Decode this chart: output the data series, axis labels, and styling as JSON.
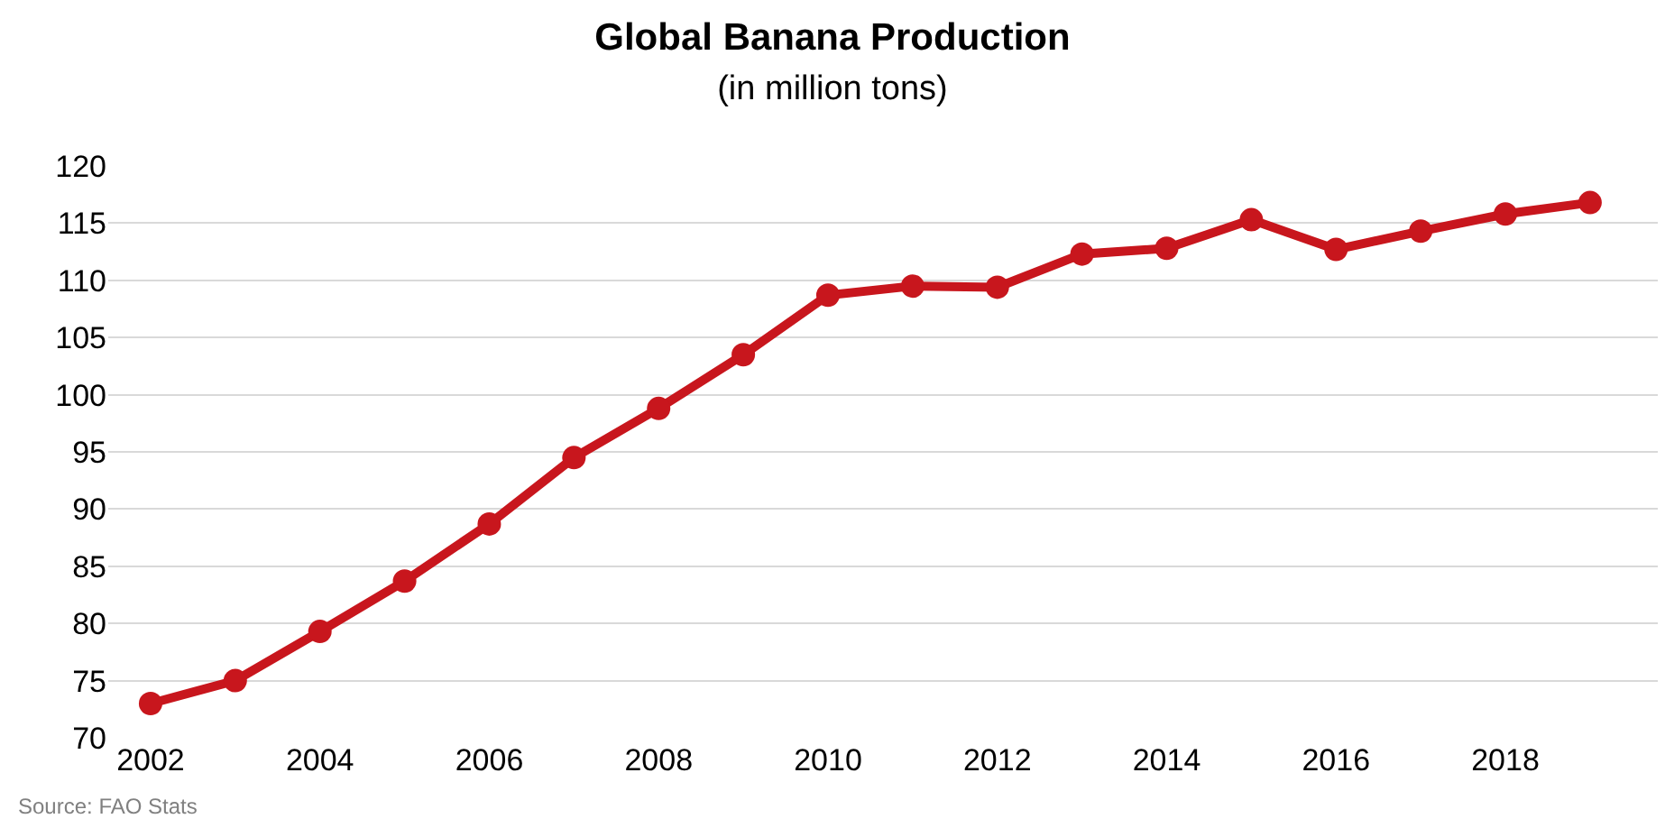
{
  "chart_data": {
    "type": "line",
    "title": "Global Banana Production",
    "subtitle": "(in million tons)",
    "x": [
      2002,
      2003,
      2004,
      2005,
      2006,
      2007,
      2008,
      2009,
      2010,
      2011,
      2012,
      2013,
      2014,
      2015,
      2016,
      2017,
      2018,
      2019
    ],
    "series": [
      {
        "color": "#c8161d",
        "values": [
          73,
          75,
          79.3,
          83.7,
          88.7,
          94.5,
          98.8,
          103.5,
          108.7,
          109.5,
          109.4,
          112.3,
          112.8,
          115.3,
          112.7,
          114.3,
          115.8,
          116.8
        ]
      }
    ],
    "xlim": [
      2001.5,
      2019.8
    ],
    "xticks": [
      2002,
      2004,
      2006,
      2008,
      2010,
      2012,
      2014,
      2016,
      2018
    ],
    "ylim": [
      70,
      120
    ],
    "yticks": [
      70,
      75,
      80,
      85,
      90,
      95,
      100,
      105,
      110,
      115,
      120
    ],
    "grid": "y",
    "marker": "circle",
    "line_style": "solid",
    "annotations": [
      "Source: FAO Stats"
    ]
  }
}
